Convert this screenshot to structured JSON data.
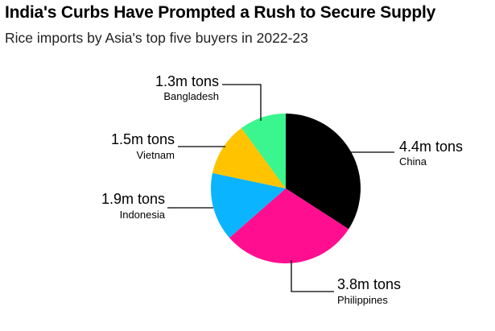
{
  "header": {
    "title": "India's Curbs Have Prompted a Rush to Secure Supply",
    "subtitle": "Rice imports by Asia's top five buyers in 2022-23"
  },
  "chart_data": {
    "type": "pie",
    "title": "India's Curbs Have Prompted a Rush to Secure Supply",
    "subtitle": "Rice imports by Asia's top five buyers in 2022-23",
    "unit": "m tons",
    "slices": [
      {
        "category": "China",
        "value": 4.4,
        "label": "4.4m tons",
        "color": "#000000"
      },
      {
        "category": "Philippines",
        "value": 3.8,
        "label": "3.8m tons",
        "color": "#ff0f8f"
      },
      {
        "category": "Indonesia",
        "value": 1.9,
        "label": "1.9m tons",
        "color": "#0ab4ff"
      },
      {
        "category": "Vietnam",
        "value": 1.5,
        "label": "1.5m tons",
        "color": "#ffc300"
      },
      {
        "category": "Bangladesh",
        "value": 1.3,
        "label": "1.3m tons",
        "color": "#3bf58e"
      }
    ],
    "legend": "none"
  }
}
